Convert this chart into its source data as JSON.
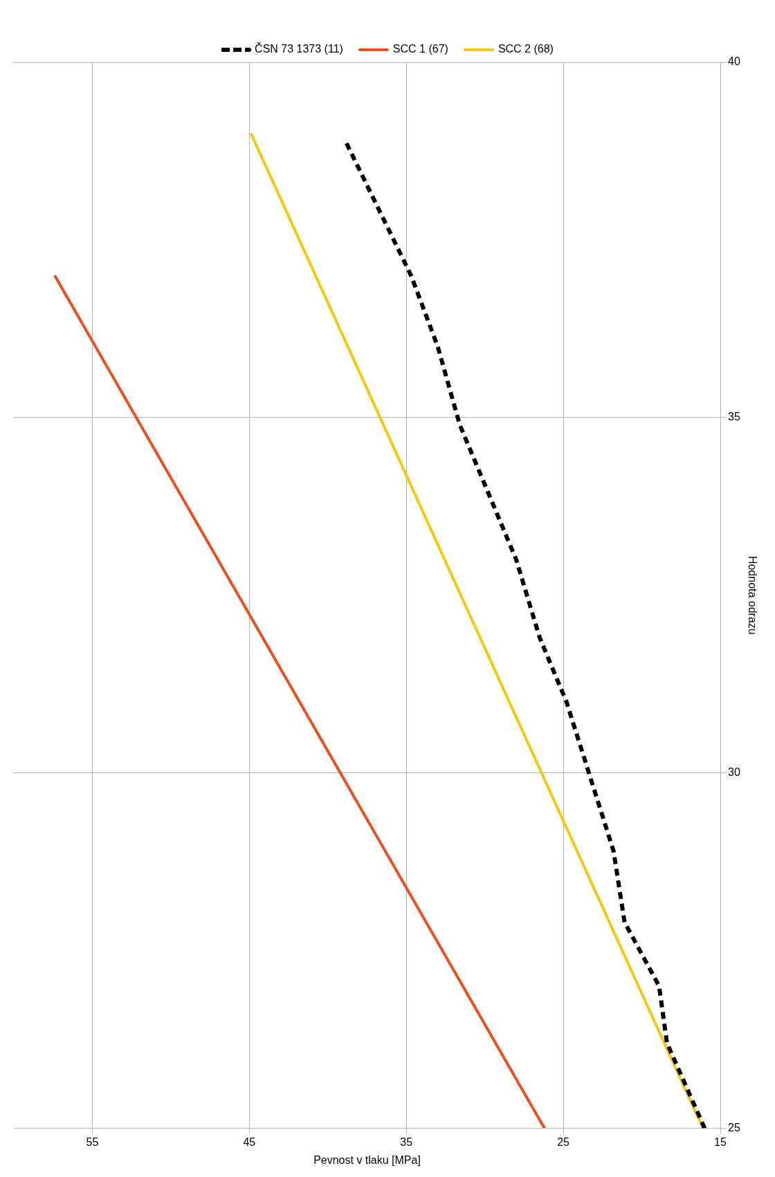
{
  "chart_data": {
    "type": "line",
    "xlabel": "Pevnost v tlaku [MPa]",
    "ylabel": "Hodnota odrazu",
    "xlim": [
      60,
      15
    ],
    "xticks": [
      55,
      45,
      35,
      25,
      15
    ],
    "ylim": [
      25,
      40
    ],
    "yticks": [
      25,
      30,
      35,
      40
    ],
    "grid": true,
    "legend": "top",
    "marker": "none",
    "series": [
      {
        "name": "ČSN 73 1373 (11)",
        "color": "#000000",
        "line_style": "dashed",
        "x": [
          16,
          18.4,
          18.9,
          21.1,
          21.8,
          23.3,
          24.8,
          26.5,
          28,
          31.6,
          33,
          34.7,
          38.9
        ],
        "values": [
          25,
          26.2,
          27,
          27.9,
          28.9,
          29.95,
          31,
          31.9,
          33,
          34.9,
          36,
          37,
          38.9
        ]
      },
      {
        "name": "SCC 1 (67)",
        "color": "#ee4d1f",
        "line_style": "solid",
        "x": [
          26.2,
          57.4
        ],
        "values": [
          25,
          37
        ]
      },
      {
        "name": "SCC 2 (68)",
        "color": "#f5c80f",
        "line_style": "solid",
        "x": [
          16.1,
          44.9
        ],
        "values": [
          25,
          39
        ]
      }
    ]
  }
}
